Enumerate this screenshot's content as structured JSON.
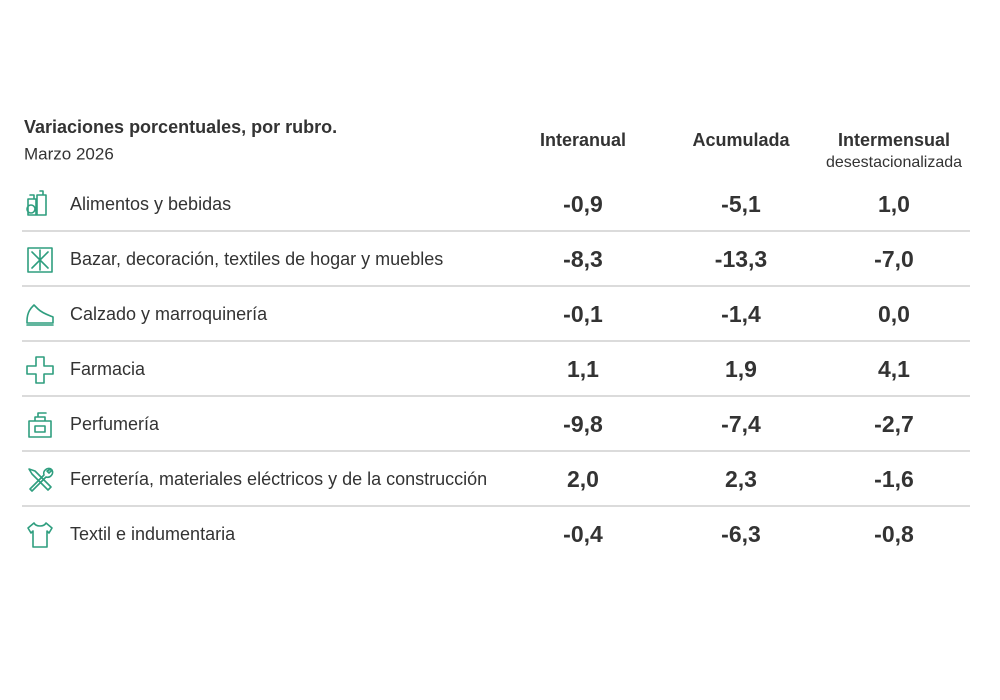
{
  "header": {
    "title": "Variaciones porcentuales, por rubro.",
    "subtitle": "Marzo 2026"
  },
  "columns": [
    {
      "title": "Interanual"
    },
    {
      "title": "Acumulada"
    },
    {
      "title": "Intermensual",
      "subtitle": "desestacionalizada"
    }
  ],
  "colors": {
    "positive": "#2f9e7f",
    "negative": "#d0454f",
    "zero": "#7a7a7a"
  },
  "table": {
    "rows": [
      [
        "Alimentos y bebidas",
        "-0,9",
        "-5,1",
        "1,0"
      ],
      [
        "Bazar, decoración, textiles de hogar y muebles",
        "-8,3",
        "-13,3",
        "-7,0"
      ],
      [
        "Calzado y marroquinería",
        "-0,1",
        "-1,4",
        "0,0"
      ],
      [
        "Farmacia",
        "1,1",
        "1,9",
        "4,1"
      ],
      [
        "Perfumería",
        "-9,8",
        "-7,4",
        "-2,7"
      ],
      [
        "Ferretería, materiales eléctricos y de la construcción",
        "2,0",
        "2,3",
        "-1,6"
      ],
      [
        "Textil e indumentaria",
        "-0,4",
        "-6,3",
        "-0,8"
      ]
    ]
  }
}
